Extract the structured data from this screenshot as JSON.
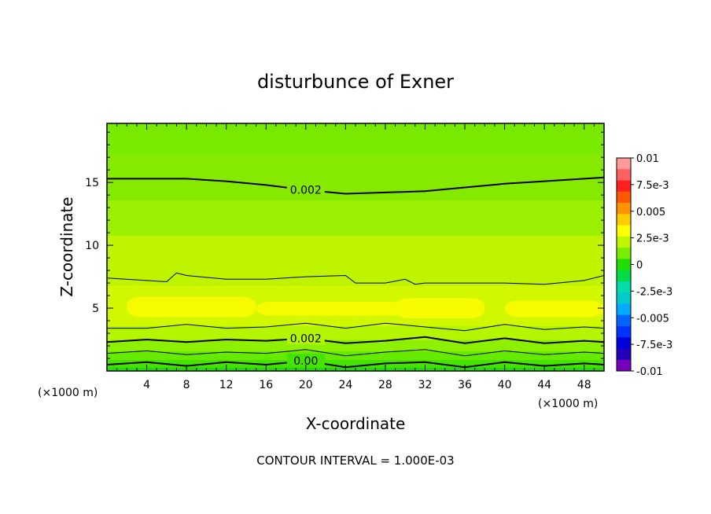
{
  "chart_data": {
    "type": "heatmap",
    "title": "disturbunce of Exner",
    "xlabel": "X-coordinate",
    "ylabel": "Z-coordinate",
    "x_unit_left": "(×1000 m)",
    "x_unit_right": "(×1000 m)",
    "xlim": [
      0,
      50
    ],
    "ylim": [
      0,
      19.7
    ],
    "x_ticks": [
      4,
      8,
      12,
      16,
      20,
      24,
      28,
      32,
      36,
      40,
      44,
      48
    ],
    "y_ticks": [
      5,
      10,
      15
    ],
    "colorbar": {
      "labels": [
        "0.01",
        "7.5e-3",
        "0.005",
        "2.5e-3",
        "0",
        "-2.5e-3",
        "-0.005",
        "-7.5e-3",
        "-0.01"
      ],
      "colors": [
        "#ff9a9a",
        "#ff6060",
        "#ff2020",
        "#ff5a00",
        "#ff9400",
        "#ffcc00",
        "#ffff00",
        "#bff500",
        "#77ee00",
        "#22dd00",
        "#00dd44",
        "#00ddaa",
        "#00cccc",
        "#00aaff",
        "#0066ff",
        "#0033ff",
        "#0000dd",
        "#2200bb",
        "#7700bb"
      ]
    },
    "bands": [
      {
        "z_bottom": 0.0,
        "z_top": 0.3,
        "color": "#22dd00"
      },
      {
        "z_bottom": 0.3,
        "z_top": 0.9,
        "color": "#44e300"
      },
      {
        "z_bottom": 0.9,
        "z_top": 1.6,
        "color": "#66ea00"
      },
      {
        "z_bottom": 1.6,
        "z_top": 2.5,
        "color": "#8cf000"
      },
      {
        "z_bottom": 2.5,
        "z_top": 3.6,
        "color": "#b4f500"
      },
      {
        "z_bottom": 3.6,
        "z_top": 6.8,
        "color": "#d2f800"
      },
      {
        "z_bottom": 6.8,
        "z_top": 10.8,
        "color": "#bef400"
      },
      {
        "z_bottom": 10.8,
        "z_top": 13.6,
        "color": "#9bef00"
      },
      {
        "z_bottom": 13.6,
        "z_top": 17.3,
        "color": "#86ea00"
      },
      {
        "z_bottom": 17.3,
        "z_top": 19.7,
        "color": "#77ea00"
      }
    ],
    "yellow_patches": [
      {
        "x_start": 2,
        "x_end": 15,
        "z_bottom": 4.3,
        "z_top": 5.9
      },
      {
        "x_start": 15,
        "x_end": 30,
        "z_bottom": 4.4,
        "z_top": 5.5
      },
      {
        "x_start": 29,
        "x_end": 38,
        "z_bottom": 4.2,
        "z_top": 5.8
      },
      {
        "x_start": 40,
        "x_end": 50,
        "z_bottom": 4.3,
        "z_top": 5.6
      }
    ],
    "contours": [
      {
        "level_label": "0.002",
        "weight": "heavy",
        "x": [
          0,
          4,
          8,
          12,
          16,
          20,
          24,
          28,
          32,
          36,
          40,
          44,
          48,
          50
        ],
        "z": [
          15.3,
          15.3,
          15.3,
          15.1,
          14.8,
          14.4,
          14.1,
          14.2,
          14.3,
          14.6,
          14.9,
          15.1,
          15.3,
          15.4
        ]
      },
      {
        "level_label": "",
        "weight": "thin",
        "x": [
          0,
          4,
          6,
          7,
          8,
          12,
          16,
          20,
          24,
          25,
          28,
          30,
          31,
          32,
          36,
          40,
          44,
          48,
          50
        ],
        "z": [
          7.4,
          7.2,
          7.1,
          7.8,
          7.6,
          7.3,
          7.3,
          7.5,
          7.6,
          7.0,
          7.0,
          7.3,
          6.9,
          7.0,
          7.0,
          7.0,
          6.9,
          7.2,
          7.6
        ]
      },
      {
        "level_label": "",
        "weight": "thin",
        "x": [
          0,
          4,
          8,
          12,
          16,
          20,
          24,
          28,
          32,
          36,
          40,
          44,
          48,
          50
        ],
        "z": [
          3.4,
          3.4,
          3.7,
          3.4,
          3.5,
          3.8,
          3.4,
          3.8,
          3.5,
          3.2,
          3.7,
          3.3,
          3.5,
          3.4
        ]
      },
      {
        "level_label": "0.002",
        "weight": "heavy",
        "x": [
          0,
          4,
          8,
          12,
          16,
          20,
          24,
          28,
          32,
          36,
          40,
          44,
          48,
          50
        ],
        "z": [
          2.3,
          2.5,
          2.3,
          2.5,
          2.4,
          2.6,
          2.2,
          2.4,
          2.7,
          2.2,
          2.6,
          2.2,
          2.4,
          2.3
        ]
      },
      {
        "level_label": "",
        "weight": "thin",
        "x": [
          0,
          4,
          8,
          12,
          16,
          20,
          24,
          28,
          32,
          36,
          40,
          44,
          48,
          50
        ],
        "z": [
          1.4,
          1.6,
          1.3,
          1.5,
          1.4,
          1.7,
          1.2,
          1.5,
          1.7,
          1.2,
          1.6,
          1.3,
          1.5,
          1.4
        ]
      },
      {
        "level_label": "0.00",
        "weight": "heavy",
        "x": [
          0,
          4,
          8,
          12,
          16,
          20,
          24,
          28,
          32,
          36,
          40,
          44,
          48,
          50
        ],
        "z": [
          0.5,
          0.7,
          0.4,
          0.7,
          0.5,
          0.8,
          0.3,
          0.6,
          0.7,
          0.3,
          0.7,
          0.4,
          0.6,
          0.5
        ]
      }
    ],
    "contour_interval_text": "CONTOUR INTERVAL = 1.000E-03"
  }
}
